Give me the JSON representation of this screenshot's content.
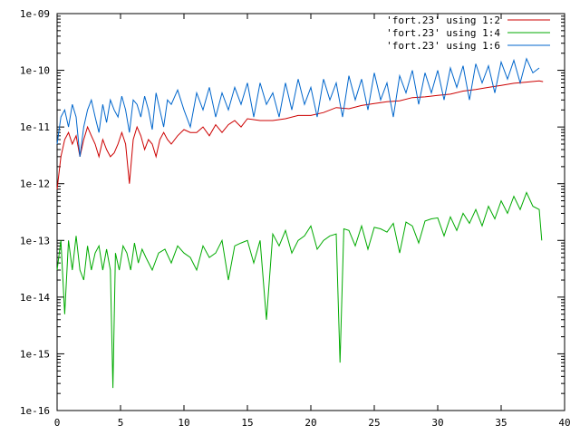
{
  "chart_data": {
    "type": "line",
    "title": "",
    "xlabel": "",
    "ylabel": "",
    "xlim": [
      0,
      40
    ],
    "ylim": [
      1e-16,
      1e-09
    ],
    "yscale": "log",
    "grid": false,
    "legend_position": "top-right",
    "x_ticks": [
      0,
      5,
      10,
      15,
      20,
      25,
      30,
      35,
      40
    ],
    "x_tick_labels": [
      "0",
      "5",
      "10",
      "15",
      "20",
      "25",
      "30",
      "35",
      "40"
    ],
    "y_ticks": [
      1e-16,
      1e-15,
      1e-14,
      1e-13,
      1e-12,
      1e-11,
      1e-10,
      1e-09
    ],
    "y_tick_labels": [
      "1e-16",
      "1e-15",
      "1e-14",
      "1e-13",
      "1e-12",
      "1e-11",
      "1e-10",
      "1e-09"
    ],
    "series": [
      {
        "name": "'fort.23' using 1:2",
        "color": "#cc0000",
        "x": [
          0,
          0.3,
          0.6,
          0.9,
          1.2,
          1.5,
          1.8,
          2.1,
          2.4,
          2.7,
          3.0,
          3.3,
          3.6,
          3.9,
          4.2,
          4.5,
          4.8,
          5.1,
          5.4,
          5.7,
          6.0,
          6.3,
          6.6,
          6.9,
          7.2,
          7.5,
          7.8,
          8.1,
          8.4,
          8.7,
          9.0,
          9.5,
          10,
          10.5,
          11,
          11.5,
          12,
          12.5,
          13,
          13.5,
          14,
          14.5,
          15,
          16,
          17,
          18,
          19,
          20,
          21,
          22,
          23,
          24,
          25,
          26,
          27,
          28,
          29,
          30,
          31,
          32,
          33,
          34,
          35,
          36,
          37,
          38,
          38.3
        ],
        "y": [
          8e-13,
          3e-12,
          6e-12,
          8e-12,
          5e-12,
          7e-12,
          3e-12,
          6e-12,
          1e-11,
          7e-12,
          5e-12,
          3e-12,
          6e-12,
          4e-12,
          3e-12,
          3.5e-12,
          5e-12,
          8e-12,
          5e-12,
          1e-12,
          6e-12,
          1e-11,
          7e-12,
          4e-12,
          6e-12,
          5e-12,
          3e-12,
          6e-12,
          8e-12,
          6e-12,
          5e-12,
          7e-12,
          9e-12,
          8e-12,
          8e-12,
          1e-11,
          7e-12,
          1.1e-11,
          8e-12,
          1.1e-11,
          1.3e-11,
          1e-11,
          1.4e-11,
          1.3e-11,
          1.3e-11,
          1.4e-11,
          1.6e-11,
          1.6e-11,
          1.8e-11,
          2.2e-11,
          2.1e-11,
          2.4e-11,
          2.6e-11,
          2.8e-11,
          2.9e-11,
          3.3e-11,
          3.4e-11,
          3.6e-11,
          3.8e-11,
          4.3e-11,
          4.6e-11,
          5e-11,
          5.4e-11,
          5.9e-11,
          6.2e-11,
          6.5e-11,
          6.3e-11
        ]
      },
      {
        "name": "'fort.23' using 1:4",
        "color": "#00aa00",
        "x": [
          0,
          0.3,
          0.6,
          0.9,
          1.2,
          1.5,
          1.8,
          2.1,
          2.4,
          2.7,
          3.0,
          3.3,
          3.6,
          3.9,
          4.2,
          4.4,
          4.6,
          4.9,
          5.2,
          5.5,
          5.8,
          6.1,
          6.4,
          6.7,
          7.0,
          7.5,
          8.0,
          8.5,
          9.0,
          9.5,
          10.0,
          10.5,
          11.0,
          11.5,
          12.0,
          12.5,
          13.0,
          13.5,
          14.0,
          14.5,
          15.0,
          15.5,
          16.0,
          16.5,
          17.0,
          17.5,
          18.0,
          18.5,
          19.0,
          19.5,
          20.0,
          20.5,
          21.0,
          21.5,
          22.0,
          22.3,
          22.6,
          23.0,
          23.5,
          24.0,
          24.5,
          25.0,
          25.5,
          26.0,
          26.5,
          27.0,
          27.5,
          28.0,
          28.5,
          29.0,
          29.5,
          30.0,
          30.5,
          31.0,
          31.5,
          32.0,
          32.5,
          33.0,
          33.5,
          34.0,
          34.5,
          35.0,
          35.5,
          36.0,
          36.5,
          37.0,
          37.5,
          38.0,
          38.2
        ],
        "y": [
          3e-14,
          1e-13,
          5e-15,
          1e-13,
          3e-14,
          1.2e-13,
          3e-14,
          2e-14,
          8e-14,
          3e-14,
          6e-14,
          8e-14,
          3e-14,
          7e-14,
          3e-14,
          2.5e-16,
          6e-14,
          3e-14,
          8e-14,
          6e-14,
          3e-14,
          9e-14,
          4e-14,
          7e-14,
          5e-14,
          3e-14,
          6e-14,
          7e-14,
          4e-14,
          8e-14,
          6e-14,
          5e-14,
          3e-14,
          8e-14,
          5e-14,
          6e-14,
          1e-13,
          2e-14,
          8e-14,
          9e-14,
          1e-13,
          4e-14,
          1e-13,
          4e-15,
          1.3e-13,
          8e-14,
          1.5e-13,
          6e-14,
          1e-13,
          1.2e-13,
          1.8e-13,
          7e-14,
          1e-13,
          1.2e-13,
          1.3e-13,
          7e-16,
          1.6e-13,
          1.5e-13,
          8e-14,
          1.8e-13,
          7e-14,
          1.7e-13,
          1.6e-13,
          1.4e-13,
          2e-13,
          6e-14,
          2.1e-13,
          1.8e-13,
          9e-14,
          2.2e-13,
          2.4e-13,
          2.5e-13,
          1.2e-13,
          2.6e-13,
          1.5e-13,
          3e-13,
          2e-13,
          3.5e-13,
          1.8e-13,
          4e-13,
          2.4e-13,
          5e-13,
          3e-13,
          6e-13,
          3.5e-13,
          7e-13,
          4e-13,
          3.5e-13,
          1e-13
        ]
      },
      {
        "name": "'fort.23' using 1:6",
        "color": "#0066cc",
        "x": [
          0,
          0.3,
          0.6,
          0.9,
          1.2,
          1.5,
          1.8,
          2.1,
          2.4,
          2.7,
          3.0,
          3.3,
          3.6,
          3.9,
          4.2,
          4.5,
          4.8,
          5.1,
          5.4,
          5.7,
          6.0,
          6.3,
          6.6,
          6.9,
          7.2,
          7.5,
          7.8,
          8.1,
          8.4,
          8.7,
          9.0,
          9.5,
          10.0,
          10.5,
          11.0,
          11.5,
          12.0,
          12.5,
          13.0,
          13.5,
          14.0,
          14.5,
          15.0,
          15.5,
          16.0,
          16.5,
          17.0,
          17.5,
          18.0,
          18.5,
          19.0,
          19.5,
          20.0,
          20.5,
          21.0,
          21.5,
          22.0,
          22.5,
          23.0,
          23.5,
          24.0,
          24.5,
          25.0,
          25.5,
          26.0,
          26.5,
          27.0,
          27.5,
          28.0,
          28.5,
          29.0,
          29.5,
          30.0,
          30.5,
          31.0,
          31.5,
          32.0,
          32.5,
          33.0,
          33.5,
          34.0,
          34.5,
          35.0,
          35.5,
          36.0,
          36.5,
          37.0,
          37.5,
          38.0
        ],
        "y": [
          5e-12,
          1.5e-11,
          2e-11,
          1e-11,
          2.5e-11,
          1.5e-11,
          3e-12,
          1e-11,
          2e-11,
          3e-11,
          1.5e-11,
          8e-12,
          2.5e-11,
          1.2e-11,
          3e-11,
          2e-11,
          1.5e-11,
          3.5e-11,
          2e-11,
          8e-12,
          3e-11,
          2.5e-11,
          1.5e-11,
          3.5e-11,
          2e-11,
          9e-12,
          4e-11,
          2e-11,
          1e-11,
          3e-11,
          2.5e-11,
          4.5e-11,
          2e-11,
          1e-11,
          4e-11,
          2e-11,
          5e-11,
          1.5e-11,
          4e-11,
          2e-11,
          5e-11,
          2.5e-11,
          6e-11,
          1.5e-11,
          6e-11,
          2.5e-11,
          4e-11,
          1.5e-11,
          6e-11,
          2e-11,
          7e-11,
          2.5e-11,
          5e-11,
          1.5e-11,
          7e-11,
          3e-11,
          6e-11,
          1.5e-11,
          8e-11,
          3e-11,
          7e-11,
          2e-11,
          9e-11,
          3e-11,
          6e-11,
          1.5e-11,
          8e-11,
          4e-11,
          1e-10,
          2.5e-11,
          9e-11,
          4e-11,
          1e-10,
          3e-11,
          1.1e-10,
          5e-11,
          1.2e-10,
          3e-11,
          1.3e-10,
          6e-11,
          1.2e-10,
          4e-11,
          1.4e-10,
          7e-11,
          1.5e-10,
          6e-11,
          1.6e-10,
          9e-11,
          1.1e-10
        ]
      }
    ]
  }
}
